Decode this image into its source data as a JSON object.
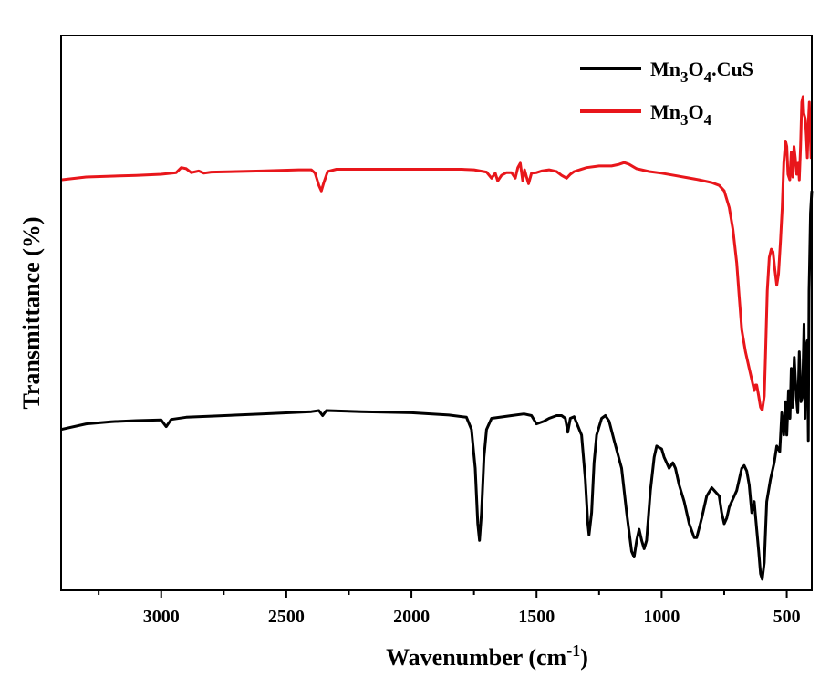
{
  "chart_data": {
    "type": "line",
    "xlabel": {
      "main": "Wavenumber (cm",
      "sup": "-1",
      "close": ")"
    },
    "ylabel": "Transmittance (%)",
    "xlim": [
      3400,
      400
    ],
    "x_reversed": true,
    "y_ticks_shown": false,
    "xticks": [
      3000,
      2500,
      2000,
      1500,
      1000,
      500
    ],
    "xtick_labels": [
      "3000",
      "2500",
      "2000",
      "1500",
      "1000",
      "500"
    ],
    "ylim": [
      0,
      100
    ],
    "grid": false,
    "legend_position": "top-right",
    "series": [
      {
        "key": "mn3o4_cus",
        "name": "Mn3O4.CuS",
        "legend": [
          {
            "t": "Mn",
            "s": ""
          },
          {
            "t": "3",
            "s": "sub"
          },
          {
            "t": "O",
            "s": ""
          },
          {
            "t": "4",
            "s": "sub"
          },
          {
            "t": ".CuS",
            "s": ""
          }
        ],
        "color": "#000000",
        "points": [
          [
            3400,
            29
          ],
          [
            3300,
            30
          ],
          [
            3200,
            30.4
          ],
          [
            3100,
            30.6
          ],
          [
            3000,
            30.7
          ],
          [
            2980,
            29.5
          ],
          [
            2960,
            30.8
          ],
          [
            2900,
            31.2
          ],
          [
            2800,
            31.4
          ],
          [
            2600,
            31.8
          ],
          [
            2400,
            32.2
          ],
          [
            2370,
            32.4
          ],
          [
            2355,
            31.5
          ],
          [
            2340,
            32.4
          ],
          [
            2200,
            32.2
          ],
          [
            2000,
            32
          ],
          [
            1850,
            31.6
          ],
          [
            1780,
            31.2
          ],
          [
            1760,
            29
          ],
          [
            1745,
            22
          ],
          [
            1735,
            12
          ],
          [
            1728,
            9
          ],
          [
            1720,
            14
          ],
          [
            1710,
            24
          ],
          [
            1700,
            29
          ],
          [
            1680,
            31
          ],
          [
            1600,
            31.5
          ],
          [
            1550,
            31.8
          ],
          [
            1520,
            31.5
          ],
          [
            1500,
            30
          ],
          [
            1470,
            30.5
          ],
          [
            1450,
            31
          ],
          [
            1420,
            31.5
          ],
          [
            1400,
            31.5
          ],
          [
            1385,
            31
          ],
          [
            1375,
            28.5
          ],
          [
            1365,
            31
          ],
          [
            1350,
            31.3
          ],
          [
            1320,
            28
          ],
          [
            1305,
            20
          ],
          [
            1295,
            12
          ],
          [
            1290,
            10
          ],
          [
            1280,
            14
          ],
          [
            1270,
            23
          ],
          [
            1260,
            28
          ],
          [
            1240,
            31
          ],
          [
            1225,
            31.5
          ],
          [
            1210,
            30.5
          ],
          [
            1190,
            27
          ],
          [
            1160,
            22
          ],
          [
            1140,
            14
          ],
          [
            1120,
            7
          ],
          [
            1110,
            6
          ],
          [
            1100,
            9
          ],
          [
            1090,
            11
          ],
          [
            1080,
            9
          ],
          [
            1070,
            7.5
          ],
          [
            1060,
            9
          ],
          [
            1045,
            18
          ],
          [
            1030,
            24
          ],
          [
            1020,
            26
          ],
          [
            1000,
            25.5
          ],
          [
            990,
            24
          ],
          [
            970,
            22
          ],
          [
            955,
            23
          ],
          [
            945,
            22
          ],
          [
            930,
            19
          ],
          [
            910,
            16
          ],
          [
            890,
            12
          ],
          [
            870,
            9.5
          ],
          [
            860,
            9.5
          ],
          [
            840,
            13
          ],
          [
            820,
            17
          ],
          [
            800,
            18.5
          ],
          [
            780,
            17.5
          ],
          [
            770,
            17
          ],
          [
            760,
            14
          ],
          [
            750,
            12
          ],
          [
            740,
            13
          ],
          [
            730,
            15
          ],
          [
            700,
            18
          ],
          [
            680,
            22
          ],
          [
            670,
            22.5
          ],
          [
            660,
            21.5
          ],
          [
            650,
            19
          ],
          [
            640,
            14
          ],
          [
            630,
            16
          ],
          [
            620,
            11
          ],
          [
            612,
            7
          ],
          [
            605,
            3
          ],
          [
            598,
            2
          ],
          [
            590,
            5
          ],
          [
            580,
            16
          ],
          [
            565,
            20
          ],
          [
            550,
            23
          ],
          [
            540,
            26
          ],
          [
            528,
            25
          ],
          [
            520,
            32
          ],
          [
            512,
            28
          ],
          [
            505,
            34
          ],
          [
            500,
            28
          ],
          [
            493,
            36
          ],
          [
            487,
            31
          ],
          [
            482,
            40
          ],
          [
            477,
            33
          ],
          [
            470,
            42
          ],
          [
            462,
            35
          ],
          [
            456,
            32
          ],
          [
            450,
            43
          ],
          [
            443,
            34
          ],
          [
            437,
            35
          ],
          [
            431,
            48
          ],
          [
            427,
            31
          ],
          [
            422,
            44
          ],
          [
            418,
            45
          ],
          [
            414,
            27
          ],
          [
            411,
            54
          ],
          [
            409,
            58
          ],
          [
            405,
            68
          ],
          [
            400,
            72
          ]
        ]
      },
      {
        "key": "mn3o4",
        "name": "Mn3O4",
        "legend": [
          {
            "t": "Mn",
            "s": ""
          },
          {
            "t": "3",
            "s": "sub"
          },
          {
            "t": "O",
            "s": ""
          },
          {
            "t": "4",
            "s": "sub"
          }
        ],
        "color": "#e8161b",
        "points": [
          [
            3400,
            74
          ],
          [
            3300,
            74.5
          ],
          [
            3100,
            74.8
          ],
          [
            3000,
            75
          ],
          [
            2940,
            75.3
          ],
          [
            2920,
            76.2
          ],
          [
            2900,
            76
          ],
          [
            2880,
            75.3
          ],
          [
            2850,
            75.6
          ],
          [
            2830,
            75.2
          ],
          [
            2800,
            75.4
          ],
          [
            2600,
            75.6
          ],
          [
            2450,
            75.8
          ],
          [
            2400,
            75.8
          ],
          [
            2385,
            75.2
          ],
          [
            2370,
            73
          ],
          [
            2360,
            72
          ],
          [
            2350,
            73.5
          ],
          [
            2335,
            75.5
          ],
          [
            2300,
            75.9
          ],
          [
            2200,
            75.9
          ],
          [
            2000,
            75.9
          ],
          [
            1800,
            75.9
          ],
          [
            1750,
            75.8
          ],
          [
            1700,
            75.4
          ],
          [
            1680,
            74.3
          ],
          [
            1665,
            75.2
          ],
          [
            1655,
            73.8
          ],
          [
            1640,
            74.8
          ],
          [
            1620,
            75.3
          ],
          [
            1600,
            75.3
          ],
          [
            1585,
            74.3
          ],
          [
            1575,
            76.2
          ],
          [
            1565,
            77
          ],
          [
            1555,
            73.8
          ],
          [
            1548,
            75.8
          ],
          [
            1540,
            74.5
          ],
          [
            1532,
            73.3
          ],
          [
            1520,
            75.2
          ],
          [
            1500,
            75.3
          ],
          [
            1480,
            75.6
          ],
          [
            1450,
            75.8
          ],
          [
            1420,
            75.5
          ],
          [
            1400,
            74.8
          ],
          [
            1380,
            74.3
          ],
          [
            1365,
            75
          ],
          [
            1350,
            75.5
          ],
          [
            1300,
            76.2
          ],
          [
            1250,
            76.5
          ],
          [
            1200,
            76.5
          ],
          [
            1170,
            76.8
          ],
          [
            1150,
            77.1
          ],
          [
            1130,
            76.8
          ],
          [
            1100,
            76
          ],
          [
            1050,
            75.5
          ],
          [
            1000,
            75.2
          ],
          [
            950,
            74.8
          ],
          [
            900,
            74.4
          ],
          [
            850,
            74
          ],
          [
            800,
            73.5
          ],
          [
            770,
            73
          ],
          [
            750,
            72
          ],
          [
            730,
            69
          ],
          [
            715,
            65
          ],
          [
            700,
            59
          ],
          [
            690,
            53
          ],
          [
            680,
            47
          ],
          [
            665,
            43
          ],
          [
            650,
            40
          ],
          [
            640,
            38
          ],
          [
            630,
            36
          ],
          [
            625,
            37
          ],
          [
            620,
            37
          ],
          [
            612,
            35
          ],
          [
            605,
            33
          ],
          [
            598,
            32.5
          ],
          [
            590,
            35
          ],
          [
            585,
            42
          ],
          [
            578,
            54
          ],
          [
            570,
            60
          ],
          [
            562,
            61.5
          ],
          [
            555,
            61
          ],
          [
            548,
            58
          ],
          [
            540,
            55
          ],
          [
            533,
            57
          ],
          [
            525,
            63
          ],
          [
            518,
            69
          ],
          [
            512,
            77
          ],
          [
            505,
            81
          ],
          [
            500,
            80
          ],
          [
            495,
            75
          ],
          [
            488,
            74
          ],
          [
            482,
            79
          ],
          [
            476,
            74.5
          ],
          [
            471,
            80
          ],
          [
            466,
            78
          ],
          [
            460,
            75
          ],
          [
            454,
            77
          ],
          [
            450,
            74
          ],
          [
            445,
            80
          ],
          [
            440,
            88
          ],
          [
            435,
            89
          ],
          [
            432,
            86
          ],
          [
            426,
            85
          ],
          [
            422,
            82
          ],
          [
            418,
            78
          ],
          [
            414,
            84
          ],
          [
            410,
            88
          ],
          [
            406,
            82
          ],
          [
            403,
            78
          ],
          [
            400,
            78
          ]
        ]
      }
    ]
  }
}
